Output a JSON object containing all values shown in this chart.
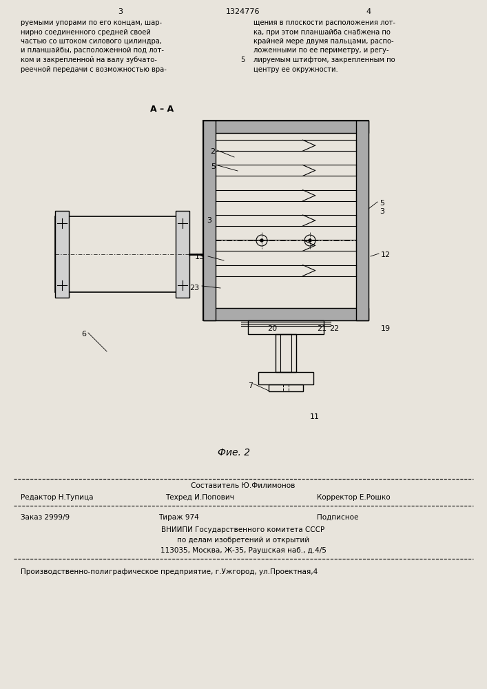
{
  "bg_color": "#e8e4dc",
  "page_width": 7.07,
  "page_height": 10.0,
  "header_page_num_left": "3",
  "header_patent_num": "1324776",
  "header_page_num_right": "4",
  "col_left_text": "руемыми упорами по его концам, шар-\nнирно соединенного средней своей\nчастью со штоком силового цилиндра,\nи планшайбы, расположенной под лот-\nком и закрепленной на валу зубчато-\nреечной передачи с возможностью вра-",
  "col_right_text": "щения в плоскости расположения лот-\nка, при этом планшайба снабжена по\nкрайней мере двумя пальцами, распо-\nложенными по ее периметру, и регу-\nлируемым штифтом, закрепленным по\nцентру ее окружности.",
  "line_number_5": "5",
  "section_label": "А – А",
  "figure_label": "Фие. 2",
  "footer_editor_label": "Редактор",
  "footer_editor_name": "Н.Тупица",
  "footer_compiler_label": "Составитель",
  "footer_compiler_name": "Ю.Филимонов",
  "footer_corrector_label": "Корректор",
  "footer_corrector_name": "Е.Рошко",
  "footer_techred_label": "Техред",
  "footer_techred_name": "И.Попович",
  "footer_order_label": "Заказ",
  "footer_order_num": "2999/9",
  "footer_tirazh_label": "Тираж",
  "footer_tirazh_num": "974",
  "footer_podpisnoe": "Подписное",
  "footer_vniipи": "ВНИИПИ Государственного комитета СССР",
  "footer_po_delam": "по делам изобретений и открытий",
  "footer_address": "113035, Москва, Ж-35, Раушская наб., д.4/5",
  "footer_printer": "Производственно-полиграфическое предприятие, г.Ужгород, ул.Проектная,4"
}
